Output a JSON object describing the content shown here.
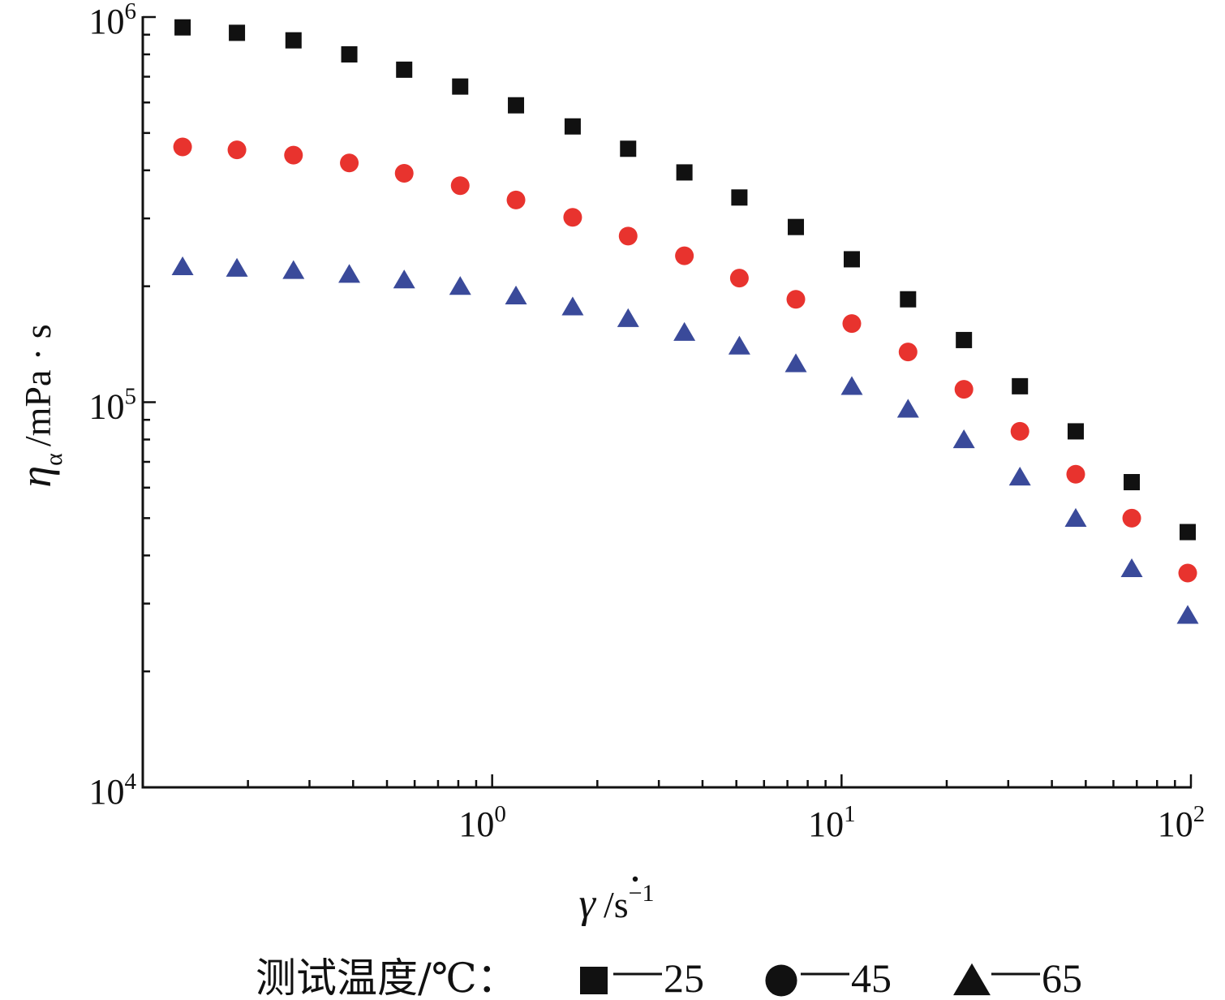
{
  "chart_data": {
    "type": "scatter",
    "xscale": "log",
    "yscale": "log",
    "xlim": [
      0.1,
      100
    ],
    "ylim": [
      10000,
      1000000
    ],
    "grid": false,
    "legend_position": "bottom",
    "x_tick_labels": [
      {
        "base": "10",
        "exp": "0"
      },
      {
        "base": "10",
        "exp": "1"
      },
      {
        "base": "10",
        "exp": "2"
      }
    ],
    "y_tick_labels": [
      {
        "base": "10",
        "exp": "4"
      },
      {
        "base": "10",
        "exp": "5"
      },
      {
        "base": "10",
        "exp": "6"
      }
    ],
    "xlabel": {
      "symbol": "γ",
      "unit": "/s",
      "exp": "−1"
    },
    "ylabel": {
      "symbol": "η",
      "sub": "α",
      "unit": "/mPa · s"
    },
    "legend_title": "测试温度/℃：",
    "x": [
      0.13,
      0.186,
      0.27,
      0.39,
      0.56,
      0.81,
      1.17,
      1.7,
      2.45,
      3.55,
      5.1,
      7.4,
      10.7,
      15.5,
      22.4,
      32.4,
      46.8,
      67.7,
      97.9
    ],
    "series": [
      {
        "name": "25",
        "marker": "square",
        "color": "#111111",
        "values": [
          940000,
          910000,
          870000,
          800000,
          730000,
          660000,
          590000,
          520000,
          455000,
          395000,
          340000,
          285000,
          235000,
          185000,
          145000,
          110000,
          84000,
          62000,
          46000
        ]
      },
      {
        "name": "45",
        "marker": "circle",
        "color": "#e8332e",
        "values": [
          460000,
          452000,
          438000,
          418000,
          393000,
          365000,
          335000,
          302000,
          270000,
          240000,
          210000,
          185000,
          160000,
          135000,
          108000,
          84000,
          65000,
          50000,
          36000
        ]
      },
      {
        "name": "65",
        "marker": "triangle",
        "color": "#3a4a9a",
        "values": [
          225000,
          223000,
          220000,
          215000,
          208000,
          200000,
          189000,
          177000,
          165000,
          152000,
          140000,
          126000,
          110000,
          96000,
          80000,
          64000,
          50000,
          37000,
          28000
        ]
      }
    ]
  }
}
